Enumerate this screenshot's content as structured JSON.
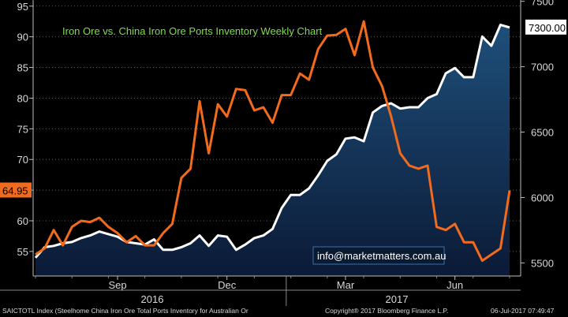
{
  "chart_data": {
    "type": "line",
    "title": "Iron Ore vs. China Iron Ore Ports Inventory Weekly Chart",
    "left_axis": {
      "ylim": [
        51,
        96
      ],
      "ticks": [
        "55",
        "60",
        "65",
        "70",
        "75",
        "80",
        "85",
        "90",
        "95"
      ]
    },
    "right_axis": {
      "ylim": [
        5400,
        7510
      ],
      "ticks": [
        "5500",
        "6000",
        "6500",
        "7000",
        "7500"
      ]
    },
    "x_ticks": [
      "Sep",
      "Dec",
      "Mar",
      "Jun"
    ],
    "years": [
      "2016",
      "2017"
    ],
    "series": [
      {
        "axis": "left",
        "color": "#f26b1d",
        "last_label": "64.95",
        "values": [
          54.5,
          55.5,
          58.5,
          56,
          59,
          60,
          59.8,
          60.5,
          59,
          58,
          56.5,
          57.5,
          56,
          56,
          58,
          59.5,
          67,
          68.5,
          79.5,
          71,
          79,
          77,
          81.5,
          81.3,
          78,
          78.5,
          76,
          80.5,
          80.5,
          84,
          83,
          88,
          90.2,
          90.3,
          91.3,
          87,
          92.5,
          85,
          82,
          77,
          71,
          69,
          68.5,
          69,
          59,
          58.5,
          59.5,
          56.5,
          56.5,
          53.5,
          54.5,
          55.5,
          64.95
        ]
      },
      {
        "axis": "right",
        "color": "#ffffff",
        "last_label": "7300.00",
        "values": [
          5540,
          5620,
          5630,
          5650,
          5660,
          5690,
          5710,
          5740,
          5720,
          5700,
          5660,
          5650,
          5640,
          5680,
          5600,
          5600,
          5620,
          5650,
          5710,
          5630,
          5710,
          5700,
          5600,
          5640,
          5690,
          5710,
          5760,
          5920,
          6020,
          6020,
          6070,
          6170,
          6280,
          6330,
          6450,
          6460,
          6430,
          6650,
          6700,
          6720,
          6680,
          6690,
          6690,
          6760,
          6790,
          6950,
          6990,
          6920,
          6920,
          7230,
          7160,
          7320,
          7300
        ]
      }
    ]
  },
  "watermark": "info@marketmatters.com.au",
  "footer": {
    "left": "SAICTOTL Index (Steelhome China Iron Ore Total Ports Inventory for Australian Or",
    "middle": "Copyright® 2017 Bloomberg Finance L.P.",
    "right": "06-Jul-2017 07:49:47"
  }
}
